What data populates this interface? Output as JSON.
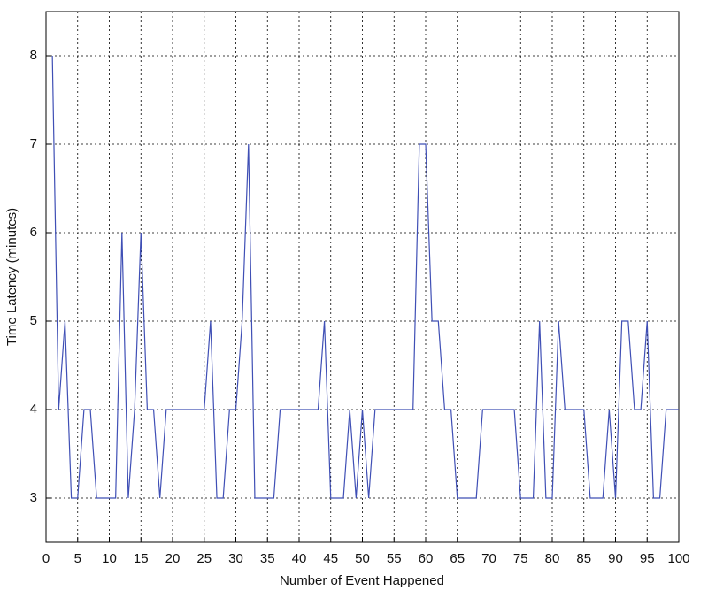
{
  "chart_data": {
    "type": "line",
    "xlabel": "Number of Event Happened",
    "ylabel": "Time Latency (minutes)",
    "x": [
      1,
      2,
      3,
      4,
      5,
      6,
      7,
      8,
      9,
      10,
      11,
      12,
      13,
      14,
      15,
      16,
      17,
      18,
      19,
      20,
      21,
      22,
      23,
      24,
      25,
      26,
      27,
      28,
      29,
      30,
      31,
      32,
      33,
      34,
      35,
      36,
      37,
      38,
      39,
      40,
      41,
      42,
      43,
      44,
      45,
      46,
      47,
      48,
      49,
      50,
      51,
      52,
      53,
      54,
      55,
      56,
      57,
      58,
      59,
      60,
      61,
      62,
      63,
      64,
      65,
      66,
      67,
      68,
      69,
      70,
      71,
      72,
      73,
      74,
      75,
      76,
      77,
      78,
      79,
      80,
      81,
      82,
      83,
      84,
      85,
      86,
      87,
      88,
      89,
      90,
      91,
      92,
      93,
      94,
      95,
      96,
      97,
      98,
      99,
      100
    ],
    "series": [
      {
        "color": "#3f4fb5",
        "values": [
          8,
          4,
          5,
          3,
          3,
          4,
          4,
          3,
          3,
          3,
          3,
          6,
          3,
          4,
          6,
          4,
          4,
          3,
          4,
          4,
          4,
          4,
          4,
          4,
          4,
          5,
          3,
          3,
          4,
          4,
          5,
          7,
          3,
          3,
          3,
          3,
          4,
          4,
          4,
          4,
          4,
          4,
          4,
          5,
          3,
          3,
          3,
          4,
          3,
          4,
          3,
          4,
          4,
          4,
          4,
          4,
          4,
          4,
          7,
          7,
          5,
          5,
          4,
          4,
          3,
          3,
          3,
          3,
          4,
          4,
          4,
          4,
          4,
          4,
          3,
          3,
          3,
          5,
          3,
          3,
          5,
          4,
          4,
          4,
          4,
          3,
          3,
          3,
          4,
          3,
          5,
          5,
          4,
          4,
          5,
          3,
          3,
          4,
          4,
          4
        ]
      }
    ],
    "xlim": [
      0,
      100
    ],
    "xticks": [
      0,
      5,
      10,
      15,
      20,
      25,
      30,
      35,
      40,
      45,
      50,
      55,
      60,
      65,
      70,
      75,
      80,
      85,
      90,
      95,
      100
    ],
    "ylim": [
      2.5,
      8.5
    ],
    "yticks": [
      3,
      4,
      5,
      6,
      7,
      8
    ],
    "grid": true
  }
}
